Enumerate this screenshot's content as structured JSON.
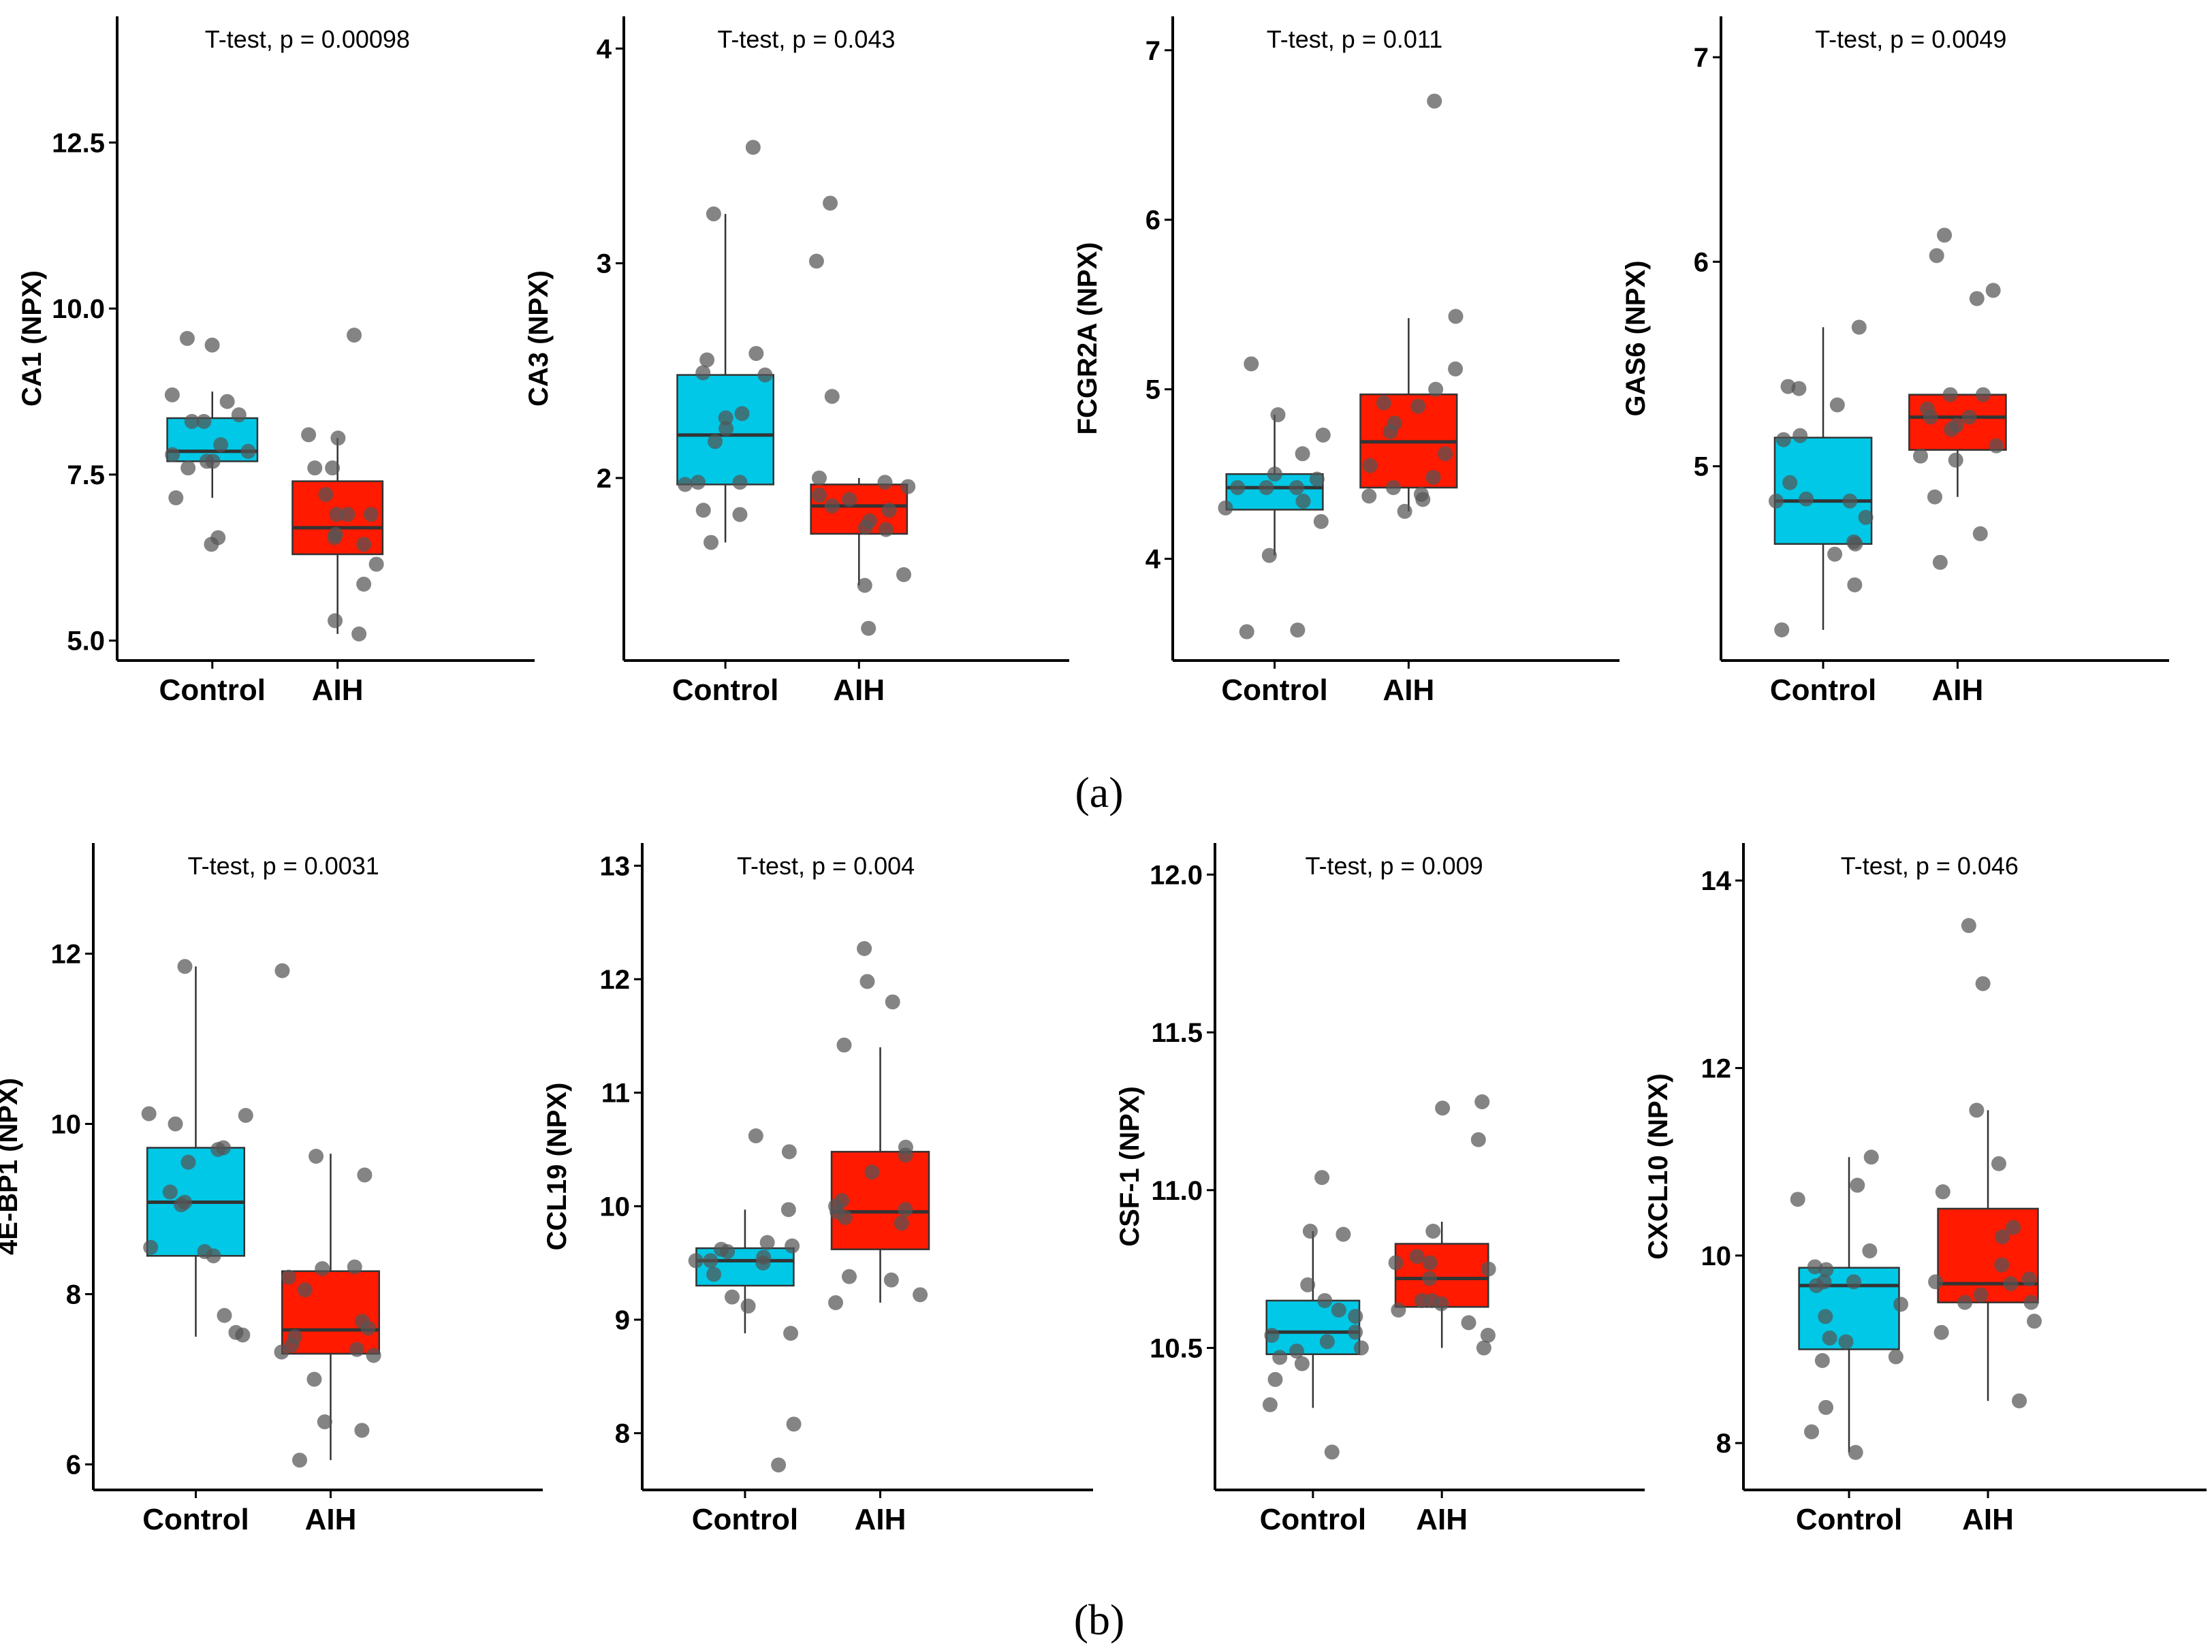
{
  "figure": {
    "panel_labels": [
      "(a)",
      "(b)"
    ],
    "colors": {
      "control": "#00c8e6",
      "aih": "#ff1a00",
      "point": "#555555",
      "axis": "#000000"
    }
  },
  "chart_data": [
    {
      "type": "box",
      "row": "a",
      "title": "T-test, p = 0.00098",
      "ylabel": "CA1 (NPX)",
      "categories": [
        "Control",
        "AIH"
      ],
      "ylim": [
        4.7,
        14.4
      ],
      "yticks": [
        5.0,
        7.5,
        10.0,
        12.5
      ],
      "ytick_labels": [
        "5.0",
        "7.5",
        "10.0",
        "12.5"
      ],
      "boxes": [
        {
          "name": "Control",
          "lower_whisker": 7.15,
          "q1": 7.7,
          "median": 7.85,
          "q3": 8.35,
          "upper_whisker": 8.75,
          "points": [
            6.45,
            6.55,
            7.15,
            7.6,
            7.7,
            7.7,
            7.8,
            7.85,
            7.95,
            8.3,
            8.3,
            8.4,
            8.6,
            8.7,
            9.45,
            9.55
          ]
        },
        {
          "name": "AIH",
          "lower_whisker": 5.1,
          "q1": 6.3,
          "median": 6.7,
          "q3": 7.4,
          "upper_whisker": 8.05,
          "points": [
            5.1,
            5.3,
            5.85,
            6.15,
            6.45,
            6.55,
            6.6,
            6.9,
            6.9,
            6.9,
            7.2,
            7.6,
            7.6,
            8.05,
            8.1,
            9.6
          ]
        }
      ]
    },
    {
      "type": "box",
      "row": "a",
      "title": "T-test, p = 0.043",
      "ylabel": "CA3 (NPX)",
      "categories": [
        "Control",
        "AIH"
      ],
      "ylim": [
        1.15,
        4.15
      ],
      "yticks": [
        2,
        3,
        4
      ],
      "ytick_labels": [
        "2",
        "3",
        "4"
      ],
      "boxes": [
        {
          "name": "Control",
          "lower_whisker": 1.7,
          "q1": 1.97,
          "median": 2.2,
          "q3": 2.48,
          "upper_whisker": 3.23,
          "points": [
            1.7,
            1.83,
            1.85,
            1.97,
            1.98,
            1.98,
            2.17,
            2.23,
            2.28,
            2.3,
            2.48,
            2.49,
            2.55,
            2.58,
            3.23,
            3.54
          ]
        },
        {
          "name": "AIH",
          "lower_whisker": 1.5,
          "q1": 1.74,
          "median": 1.87,
          "q3": 1.97,
          "upper_whisker": 2.0,
          "points": [
            1.3,
            1.5,
            1.55,
            1.76,
            1.77,
            1.8,
            1.85,
            1.87,
            1.9,
            1.92,
            1.96,
            1.98,
            2.0,
            2.38,
            3.01,
            3.28
          ]
        }
      ]
    },
    {
      "type": "box",
      "row": "a",
      "title": "T-test, p = 0.011",
      "ylabel": "FCGR2A (NPX)",
      "categories": [
        "Control",
        "AIH"
      ],
      "ylim": [
        3.4,
        7.2
      ],
      "yticks": [
        4,
        5,
        6,
        7
      ],
      "ytick_labels": [
        "4",
        "5",
        "6",
        "7"
      ],
      "boxes": [
        {
          "name": "Control",
          "lower_whisker": 4.02,
          "q1": 4.29,
          "median": 4.42,
          "q3": 4.5,
          "upper_whisker": 4.85,
          "points": [
            3.57,
            3.58,
            4.02,
            4.22,
            4.3,
            4.34,
            4.42,
            4.42,
            4.42,
            4.47,
            4.5,
            4.62,
            4.73,
            4.85,
            5.15
          ]
        },
        {
          "name": "AIH",
          "lower_whisker": 4.28,
          "q1": 4.42,
          "median": 4.69,
          "q3": 4.97,
          "upper_whisker": 5.42,
          "points": [
            4.28,
            4.35,
            4.37,
            4.38,
            4.42,
            4.48,
            4.55,
            4.62,
            4.75,
            4.8,
            4.9,
            4.92,
            5.0,
            5.12,
            5.43,
            6.7
          ]
        }
      ]
    },
    {
      "type": "box",
      "row": "a",
      "title": "T-test, p = 0.0049",
      "ylabel": "GAS6 (NPX)",
      "categories": [
        "Control",
        "AIH"
      ],
      "ylim": [
        4.05,
        7.2
      ],
      "yticks": [
        5,
        6,
        7
      ],
      "ytick_labels": [
        "5",
        "6",
        "7"
      ],
      "boxes": [
        {
          "name": "Control",
          "lower_whisker": 4.2,
          "q1": 4.62,
          "median": 4.83,
          "q3": 5.14,
          "upper_whisker": 5.68,
          "points": [
            4.2,
            4.42,
            4.57,
            4.62,
            4.63,
            4.75,
            4.83,
            4.83,
            4.84,
            4.92,
            5.13,
            5.15,
            5.3,
            5.38,
            5.39,
            5.68
          ]
        },
        {
          "name": "AIH",
          "lower_whisker": 4.85,
          "q1": 5.08,
          "median": 5.24,
          "q3": 5.35,
          "upper_whisker": 5.35,
          "points": [
            4.53,
            4.67,
            4.85,
            5.03,
            5.05,
            5.1,
            5.18,
            5.2,
            5.24,
            5.24,
            5.28,
            5.35,
            5.35,
            5.82,
            5.86,
            6.03,
            6.13
          ]
        }
      ]
    },
    {
      "type": "box",
      "row": "b",
      "title": "T-test, p = 0.0031",
      "ylabel": "4E-BP1 (NPX)",
      "categories": [
        "Control",
        "AIH"
      ],
      "ylim": [
        5.7,
        13.3
      ],
      "yticks": [
        6,
        8,
        10,
        12
      ],
      "ytick_labels": [
        "6",
        "8",
        "10",
        "12"
      ],
      "boxes": [
        {
          "name": "Control",
          "lower_whisker": 7.5,
          "q1": 8.45,
          "median": 9.08,
          "q3": 9.72,
          "upper_whisker": 11.85,
          "points": [
            7.52,
            7.55,
            7.75,
            8.45,
            8.5,
            8.55,
            9.05,
            9.08,
            9.2,
            9.55,
            9.7,
            9.72,
            10.0,
            10.1,
            10.12,
            11.85
          ]
        },
        {
          "name": "AIH",
          "lower_whisker": 6.05,
          "q1": 7.3,
          "median": 7.58,
          "q3": 8.27,
          "upper_whisker": 9.65,
          "points": [
            6.05,
            6.4,
            6.5,
            7.0,
            7.28,
            7.32,
            7.35,
            7.4,
            7.5,
            7.6,
            7.68,
            8.05,
            8.2,
            8.3,
            8.32,
            9.4,
            9.62,
            11.8
          ]
        }
      ]
    },
    {
      "type": "box",
      "row": "b",
      "title": "T-test, p = 0.004",
      "ylabel": "CCL19 (NPX)",
      "categories": [
        "Control",
        "AIH"
      ],
      "ylim": [
        7.5,
        13.2
      ],
      "yticks": [
        8,
        9,
        10,
        11,
        12,
        13
      ],
      "ytick_labels": [
        "8",
        "9",
        "10",
        "11",
        "12",
        "13"
      ],
      "boxes": [
        {
          "name": "Control",
          "lower_whisker": 8.88,
          "q1": 9.3,
          "median": 9.52,
          "q3": 9.63,
          "upper_whisker": 9.97,
          "points": [
            7.72,
            8.08,
            8.88,
            9.12,
            9.2,
            9.4,
            9.5,
            9.52,
            9.52,
            9.55,
            9.6,
            9.62,
            9.65,
            9.68,
            9.97,
            10.48,
            10.62
          ]
        },
        {
          "name": "AIH",
          "lower_whisker": 9.15,
          "q1": 9.62,
          "median": 9.95,
          "q3": 10.48,
          "upper_whisker": 11.4,
          "points": [
            9.15,
            9.22,
            9.35,
            9.38,
            9.85,
            9.9,
            9.95,
            9.97,
            10.0,
            10.05,
            10.3,
            10.45,
            10.52,
            11.42,
            11.8,
            11.98,
            12.27
          ]
        }
      ]
    },
    {
      "type": "box",
      "row": "b",
      "title": "T-test, p = 0.009",
      "ylabel": "CSF-1 (NPX)",
      "categories": [
        "Control",
        "AIH"
      ],
      "ylim": [
        10.05,
        12.1
      ],
      "yticks": [
        10.5,
        11.0,
        11.5,
        12.0
      ],
      "ytick_labels": [
        "10.5",
        "11.0",
        "11.5",
        "12.0"
      ],
      "boxes": [
        {
          "name": "Control",
          "lower_whisker": 10.31,
          "q1": 10.48,
          "median": 10.55,
          "q3": 10.65,
          "upper_whisker": 10.87,
          "points": [
            10.17,
            10.32,
            10.4,
            10.45,
            10.47,
            10.49,
            10.5,
            10.52,
            10.54,
            10.55,
            10.6,
            10.62,
            10.65,
            10.7,
            10.86,
            10.87,
            11.04
          ]
        },
        {
          "name": "AIH",
          "lower_whisker": 10.5,
          "q1": 10.63,
          "median": 10.72,
          "q3": 10.83,
          "upper_whisker": 10.9,
          "points": [
            10.5,
            10.54,
            10.58,
            10.62,
            10.64,
            10.65,
            10.65,
            10.72,
            10.75,
            10.77,
            10.77,
            10.79,
            10.87,
            11.16,
            11.26,
            11.28
          ]
        }
      ]
    },
    {
      "type": "box",
      "row": "b",
      "title": "T-test, p = 0.046",
      "ylabel": "CXCL10 (NPX)",
      "categories": [
        "Control",
        "AIH"
      ],
      "ylim": [
        7.5,
        14.4
      ],
      "yticks": [
        8,
        10,
        12,
        14
      ],
      "ytick_labels": [
        "8",
        "10",
        "12",
        "14"
      ],
      "boxes": [
        {
          "name": "Control",
          "lower_whisker": 7.9,
          "q1": 9.0,
          "median": 9.68,
          "q3": 9.87,
          "upper_whisker": 11.05,
          "points": [
            7.9,
            8.12,
            8.38,
            8.88,
            8.92,
            9.08,
            9.12,
            9.35,
            9.48,
            9.68,
            9.72,
            9.72,
            9.85,
            9.88,
            10.05,
            10.6,
            10.75,
            11.05
          ]
        },
        {
          "name": "AIH",
          "lower_whisker": 8.45,
          "q1": 9.5,
          "median": 9.7,
          "q3": 10.5,
          "upper_whisker": 11.55,
          "points": [
            8.45,
            9.18,
            9.3,
            9.5,
            9.5,
            9.58,
            9.7,
            9.72,
            9.75,
            9.9,
            10.2,
            10.3,
            10.68,
            10.98,
            11.55,
            12.9,
            13.52
          ]
        }
      ]
    }
  ]
}
